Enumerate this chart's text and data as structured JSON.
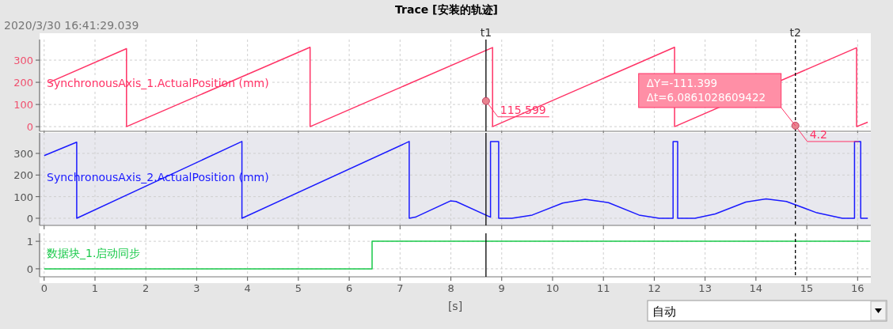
{
  "chart_data": [
    {
      "type": "line",
      "title": "Trace [安装的轨迹]",
      "subtitle": "2020/3/30 16:41:29.039",
      "xlim": [
        -0.09,
        16.26
      ],
      "xticks": [
        0,
        1,
        2,
        3,
        4,
        5,
        6,
        7,
        8,
        9,
        10,
        11,
        12,
        13,
        14,
        15,
        16
      ],
      "ylim": [
        -21,
        393
      ],
      "yticks": [
        0,
        100,
        200,
        300
      ],
      "tick_labels": "y",
      "grid": true,
      "series": [
        {
          "name": "SynchronousAxis_1.ActualPosition (mm)",
          "color": "#ff3366",
          "x": [
            0.1,
            1.62,
            1.62,
            5.23,
            5.23,
            8.82,
            8.82,
            12.4,
            12.4,
            15.98,
            15.98,
            16.2
          ],
          "values": [
            200,
            352,
            0,
            358,
            0,
            357,
            0,
            358,
            0,
            356,
            0,
            20
          ]
        }
      ],
      "ref_lines": [
        {
          "axis": "x",
          "value": 8.69,
          "label": "t1",
          "line_style": "solid"
        },
        {
          "axis": "x",
          "value": 14.776,
          "label": "t2",
          "line_style": "dashed"
        }
      ],
      "annotations": [
        {
          "text": "115.599",
          "x": 8.69,
          "y": 115.599
        },
        {
          "text": "4.2",
          "x": 14.776,
          "y": 4.2
        },
        "ΔY=-111.399\nΔt=6.0861028609422"
      ]
    },
    {
      "type": "line",
      "xlim": [
        -0.09,
        16.26
      ],
      "xticks": [
        0,
        1,
        2,
        3,
        4,
        5,
        6,
        7,
        8,
        9,
        10,
        11,
        12,
        13,
        14,
        15,
        16
      ],
      "ylim": [
        -33,
        395
      ],
      "yticks": [
        0,
        100,
        200,
        300
      ],
      "tick_labels": "y",
      "grid": true,
      "series": [
        {
          "name": "SynchronousAxis_2.ActualPosition (mm)",
          "color": "#1a1aff",
          "x": [
            0,
            0.64,
            0.64,
            3.89,
            3.89,
            7.18,
            7.18,
            7.3,
            7.99,
            8.1,
            8.78,
            8.78,
            8.94,
            8.94,
            9.2,
            9.6,
            10.2,
            10.64,
            11.1,
            11.7,
            12.1,
            12.37,
            12.37,
            12.46,
            12.46,
            12.8,
            13.2,
            13.8,
            14.2,
            14.6,
            15.2,
            15.7,
            15.94,
            15.94,
            16.06,
            16.06,
            16.2
          ],
          "values": [
            290,
            352,
            0,
            355,
            0,
            355,
            0,
            5,
            80,
            78,
            5,
            355,
            355,
            0,
            0,
            15,
            70,
            88,
            72,
            15,
            0,
            0,
            355,
            355,
            0,
            0,
            20,
            75,
            90,
            78,
            25,
            0,
            0,
            355,
            355,
            0,
            0
          ]
        }
      ],
      "ref_lines": [
        {
          "axis": "x",
          "value": 8.69,
          "line_style": "solid"
        },
        {
          "axis": "x",
          "value": 14.776,
          "line_style": "dashed"
        }
      ]
    },
    {
      "type": "step",
      "xlabel": "[s]",
      "xlim": [
        -0.09,
        16.26
      ],
      "xticks": [
        0,
        1,
        2,
        3,
        4,
        5,
        6,
        7,
        8,
        9,
        10,
        11,
        12,
        13,
        14,
        15,
        16
      ],
      "ylim": [
        -0.29,
        1.29
      ],
      "yticks": [
        0,
        1
      ],
      "grid": true,
      "series": [
        {
          "name": "数据块_1.启动同步",
          "color": "#19c94a",
          "x": [
            0,
            6.45,
            16.25
          ],
          "values": [
            0,
            1,
            1
          ]
        }
      ],
      "ref_lines": [
        {
          "axis": "x",
          "value": 8.69,
          "line_style": "solid"
        },
        {
          "axis": "x",
          "value": 14.776,
          "line_style": "dashed"
        }
      ],
      "annotations": [
        "自动"
      ]
    }
  ]
}
